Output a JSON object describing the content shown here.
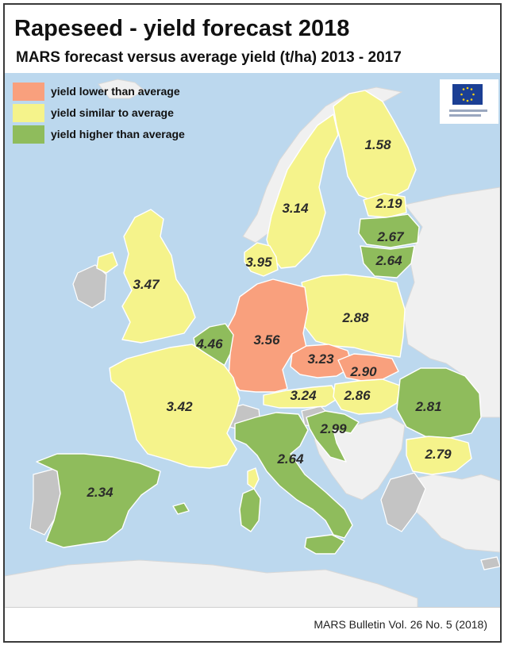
{
  "title": "Rapeseed - yield forecast 2018",
  "subtitle": "MARS forecast versus average yield (t/ha) 2013 - 2017",
  "legend": [
    {
      "label": "yield lower than average",
      "color": "#f9a07d"
    },
    {
      "label": "yield similar to average",
      "color": "#f5f38b"
    },
    {
      "label": "yield higher than average",
      "color": "#8fbc5c"
    }
  ],
  "colors": {
    "sea": "#bcd8ee",
    "no_data": "#c4c4c4",
    "other_land": "#f0f0f0",
    "border": "#ffffff"
  },
  "logo": {
    "icon": "european-commission-logo"
  },
  "regions": [
    {
      "id": "finland",
      "value": "1.58",
      "category": "similar"
    },
    {
      "id": "sweden",
      "value": "3.14",
      "category": "similar"
    },
    {
      "id": "estonia",
      "value": "2.19",
      "category": "similar"
    },
    {
      "id": "latvia",
      "value": "2.67",
      "category": "higher"
    },
    {
      "id": "lithuania",
      "value": "2.64",
      "category": "higher"
    },
    {
      "id": "denmark",
      "value": "3.95",
      "category": "similar"
    },
    {
      "id": "united-kingdom",
      "value": "3.47",
      "category": "similar"
    },
    {
      "id": "poland",
      "value": "2.88",
      "category": "similar"
    },
    {
      "id": "germany",
      "value": "3.56",
      "category": "lower"
    },
    {
      "id": "benelux",
      "value": "4.46",
      "category": "higher"
    },
    {
      "id": "czechia",
      "value": "3.23",
      "category": "lower"
    },
    {
      "id": "slovakia",
      "value": "2.90",
      "category": "lower"
    },
    {
      "id": "austria",
      "value": "3.24",
      "category": "similar"
    },
    {
      "id": "hungary",
      "value": "2.86",
      "category": "similar"
    },
    {
      "id": "romania",
      "value": "2.81",
      "category": "higher"
    },
    {
      "id": "france",
      "value": "3.42",
      "category": "similar"
    },
    {
      "id": "croatia",
      "value": "2.99",
      "category": "higher"
    },
    {
      "id": "bulgaria",
      "value": "2.79",
      "category": "similar"
    },
    {
      "id": "italy",
      "value": "2.64",
      "category": "higher"
    },
    {
      "id": "spain",
      "value": "2.34",
      "category": "higher"
    }
  ],
  "source": "MARS Bulletin Vol. 26 No. 5 (2018)"
}
